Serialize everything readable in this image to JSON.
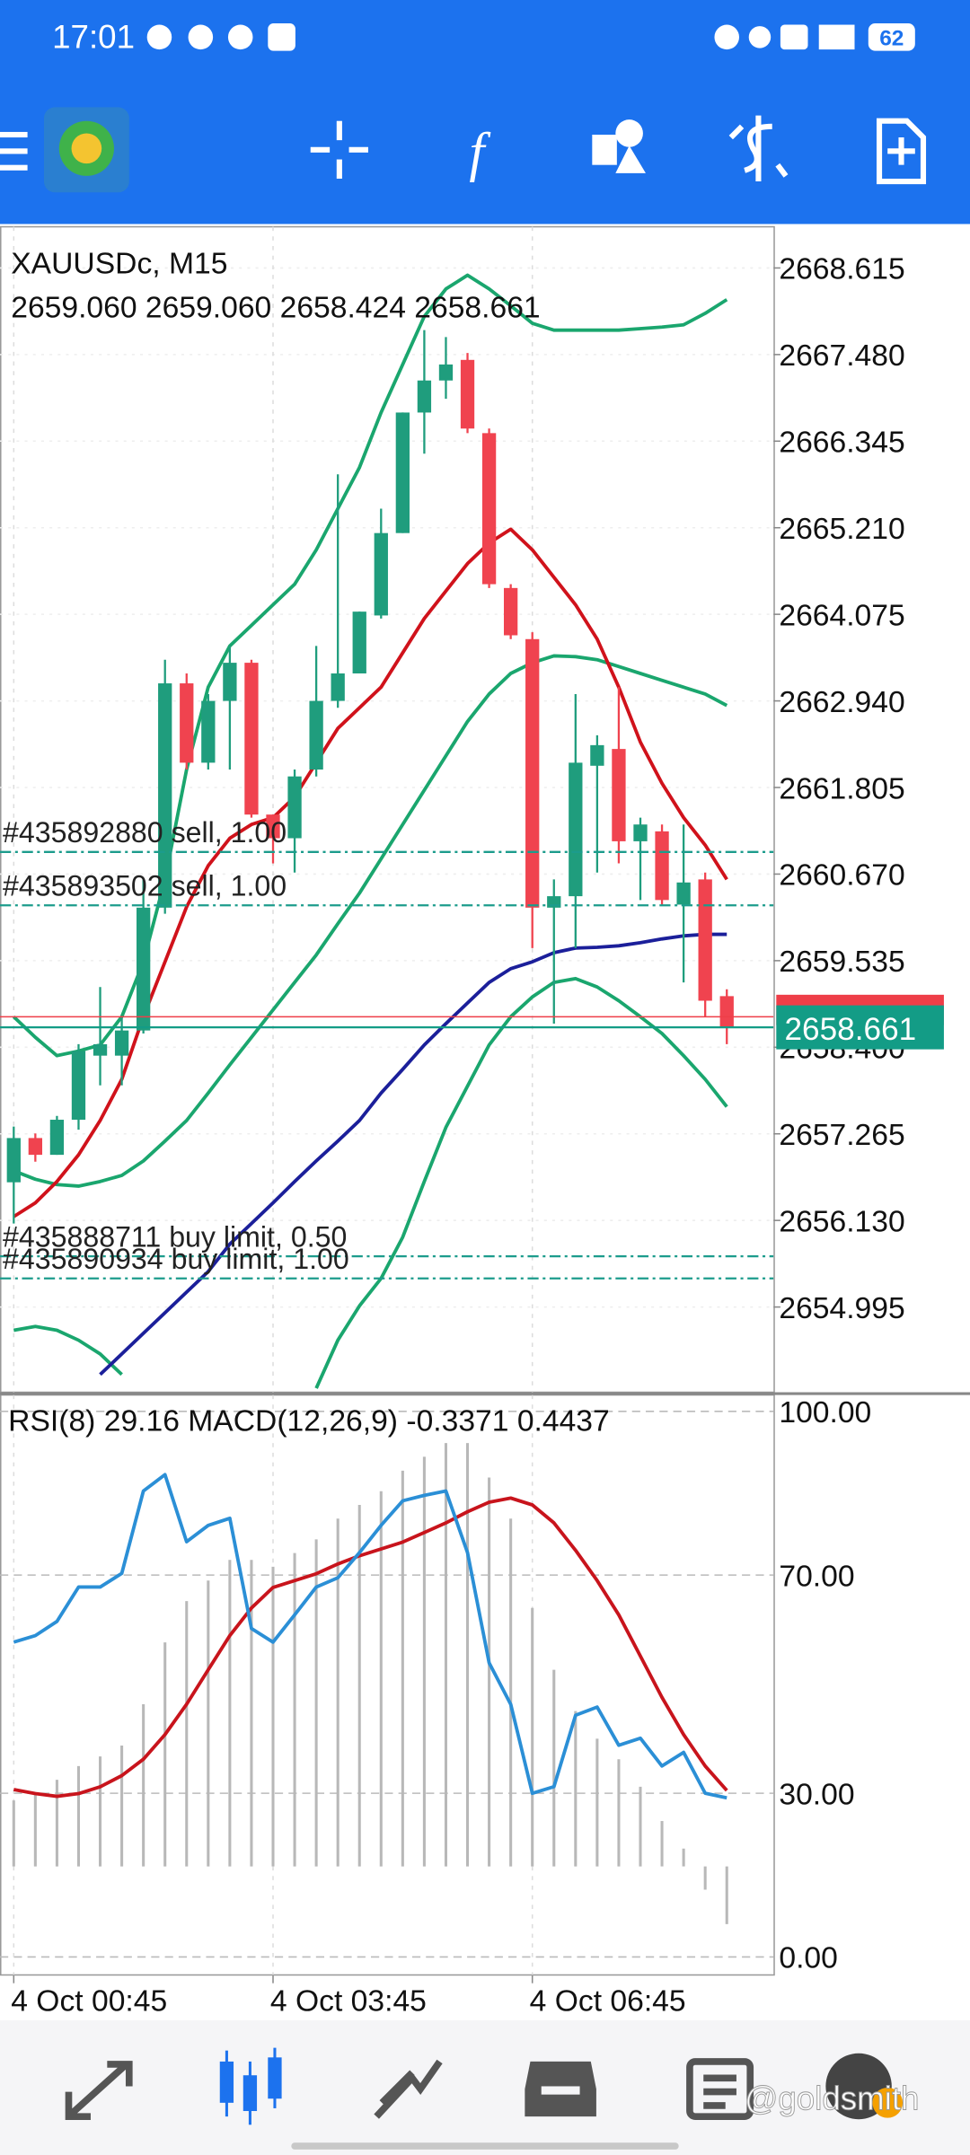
{
  "status_bar": {
    "time": "17:01",
    "battery": "62"
  },
  "chart": {
    "type": "candlestick",
    "symbol": "XAUUSDc, M15",
    "ohlc_text": "2659.060 2659.060 2658.424 2658.661",
    "ylim": [
      2653.878,
      2669.155
    ],
    "yticks": [
      {
        "value": 2668.615,
        "label": "2668.615"
      },
      {
        "value": 2667.48,
        "label": "2667.480"
      },
      {
        "value": 2666.345,
        "label": "2666.345"
      },
      {
        "value": 2665.21,
        "label": "2665.210"
      },
      {
        "value": 2664.075,
        "label": "2664.075"
      },
      {
        "value": 2662.94,
        "label": "2662.940"
      },
      {
        "value": 2661.805,
        "label": "2661.805"
      },
      {
        "value": 2660.67,
        "label": "2660.670"
      },
      {
        "value": 2659.535,
        "label": "2659.535"
      },
      {
        "value": 2658.4,
        "label": "2658.400"
      },
      {
        "value": 2657.265,
        "label": "2657.265"
      },
      {
        "value": 2656.13,
        "label": "2656.130"
      },
      {
        "value": 2654.995,
        "label": "2654.995"
      }
    ],
    "up_color": "#1f9d7d",
    "down_color": "#f0434f",
    "candles": {
      "open": [
        2656.63,
        2657.21,
        2656.99,
        2657.45,
        2658.29,
        2658.29,
        2658.62,
        2660.23,
        2663.17,
        2662.13,
        2662.94,
        2663.44,
        2661.45,
        2661.14,
        2662.04,
        2662.94,
        2663.3,
        2664.06,
        2665.14,
        2666.72,
        2667.14,
        2667.41,
        2666.45,
        2664.42,
        2663.75,
        2660.23,
        2660.38,
        2662.09,
        2662.31,
        2661.1,
        2661.23,
        2660.27,
        2660.6,
        2659.07
      ],
      "high": [
        2657.36,
        2657.27,
        2657.5,
        2658.44,
        2659.19,
        2658.8,
        2660.6,
        2663.48,
        2663.3,
        2663.03,
        2663.66,
        2663.48,
        2661.45,
        2662.04,
        2663.66,
        2665.91,
        2664.11,
        2665.46,
        2666.72,
        2667.8,
        2667.71,
        2667.5,
        2666.51,
        2664.47,
        2663.84,
        2660.6,
        2663.03,
        2662.49,
        2663.12,
        2661.41,
        2661.32,
        2661.32,
        2660.69,
        2659.16
      ],
      "low": [
        2656.09,
        2656.9,
        2656.99,
        2657.32,
        2657.9,
        2657.9,
        2658.58,
        2660.15,
        2662.04,
        2662.04,
        2662.04,
        2661.41,
        2660.81,
        2660.69,
        2661.95,
        2662.85,
        2663.3,
        2664.02,
        2665.14,
        2666.18,
        2666.9,
        2666.45,
        2664.42,
        2663.75,
        2659.7,
        2658.71,
        2659.7,
        2660.69,
        2660.81,
        2660.33,
        2660.27,
        2659.25,
        2658.8,
        2658.44
      ],
      "close": [
        2657.21,
        2656.99,
        2657.45,
        2658.35,
        2658.44,
        2658.62,
        2660.23,
        2663.17,
        2662.13,
        2662.94,
        2663.44,
        2661.45,
        2661.14,
        2661.95,
        2662.94,
        2663.3,
        2664.11,
        2665.14,
        2666.72,
        2667.14,
        2667.35,
        2666.51,
        2664.47,
        2663.8,
        2660.23,
        2660.38,
        2662.13,
        2662.36,
        2661.1,
        2661.32,
        2660.33,
        2660.56,
        2659.01,
        2658.66
      ]
    },
    "lines": [
      {
        "color": "#1aa66e",
        "values": [
          2658.8,
          2658.53,
          2658.29,
          2658.35,
          2658.43,
          2658.8,
          2659.52,
          2660.6,
          2662.04,
          2663.12,
          2663.66,
          2663.93,
          2664.2,
          2664.47,
          2664.92,
          2665.46,
          2666.0,
          2666.72,
          2667.35,
          2667.98,
          2668.34,
          2668.52,
          2668.34,
          2668.12,
          2667.89,
          2667.8,
          2667.8,
          2667.8,
          2667.8,
          2667.82,
          2667.84,
          2667.87,
          2668.02,
          2668.2
        ]
      },
      {
        "color": "#1aa66e",
        "values": [
          2656.78,
          2656.67,
          2656.6,
          2656.58,
          2656.64,
          2656.72,
          2656.91,
          2657.17,
          2657.44,
          2657.8,
          2658.17,
          2658.53,
          2658.89,
          2659.25,
          2659.61,
          2660.02,
          2660.42,
          2660.87,
          2661.32,
          2661.77,
          2662.22,
          2662.67,
          2663.03,
          2663.3,
          2663.44,
          2663.53,
          2663.52,
          2663.48,
          2663.39,
          2663.3,
          2663.21,
          2663.12,
          2663.03,
          2662.88
        ]
      },
      {
        "color": "#1aa66e",
        "values": [
          2654.69,
          2654.74,
          2654.69,
          2654.56,
          2654.38,
          2654.11,
          null,
          null,
          null,
          null,
          null,
          null,
          null,
          null,
          2653.93,
          2654.56,
          2655.01,
          2655.37,
          2655.91,
          2656.64,
          2657.35,
          2657.89,
          2658.43,
          2658.8,
          2659.06,
          2659.25,
          2659.3,
          2659.19,
          2659.01,
          2658.8,
          2658.58,
          2658.29,
          2657.98,
          2657.62
        ]
      },
      {
        "color": "#d0121b",
        "values": [
          2656.18,
          2656.36,
          2656.64,
          2656.99,
          2657.44,
          2657.98,
          2658.8,
          2659.52,
          2660.24,
          2660.78,
          2661.14,
          2661.32,
          2661.41,
          2661.68,
          2662.13,
          2662.58,
          2662.85,
          2663.12,
          2663.57,
          2664.02,
          2664.38,
          2664.74,
          2665.01,
          2665.19,
          2664.92,
          2664.56,
          2664.2,
          2663.75,
          2663.12,
          2662.4,
          2661.86,
          2661.41,
          2661.05,
          2660.6
        ]
      },
      {
        "color": "#1b1f9a",
        "values": [
          null,
          null,
          null,
          null,
          2654.11,
          2654.38,
          2654.65,
          2654.92,
          2655.19,
          2655.46,
          2655.82,
          2656.09,
          2656.36,
          2656.64,
          2656.91,
          2657.17,
          2657.44,
          2657.8,
          2658.11,
          2658.43,
          2658.71,
          2658.98,
          2659.25,
          2659.43,
          2659.52,
          2659.64,
          2659.7,
          2659.71,
          2659.73,
          2659.77,
          2659.82,
          2659.86,
          2659.88,
          2659.88
        ]
      }
    ],
    "orders": [
      {
        "label": "#435892880 sell, 1.00",
        "price": 2660.96
      },
      {
        "label": "#435893502 sell, 1.00",
        "price": 2660.26
      },
      {
        "label": "#435888711 buy limit, 0.50",
        "price": 2655.66
      },
      {
        "label": "#435890934 buy limit, 1.00",
        "price": 2655.37
      }
    ],
    "order_color": "#1c9c8c",
    "bid": 2658.661,
    "bid_color": "#139c86",
    "ask": 2658.8,
    "ask_color": "#ee3e48"
  },
  "indicator": {
    "header": "RSI(8) 29.16 MACD(12,26,9) -0.3371 0.4437",
    "ylim": [
      -3.3,
      103
    ],
    "yticks": [
      {
        "value": 100,
        "label": "100.00"
      },
      {
        "value": 70,
        "label": "70.00"
      },
      {
        "value": 30,
        "label": "30.00"
      },
      {
        "value": 0,
        "label": "0.00"
      }
    ],
    "rsi": {
      "color": "#2b8fd6",
      "values": [
        57.7,
        58.9,
        61.5,
        67.8,
        67.8,
        70.3,
        85.4,
        88.4,
        76.1,
        79.1,
        80.4,
        60.2,
        57.7,
        62.7,
        67.8,
        69.5,
        74.1,
        79.1,
        83.6,
        84.6,
        85.4,
        74.1,
        53.9,
        46.3,
        30.0,
        31.2,
        44.3,
        45.8,
        38.8,
        40.1,
        35.0,
        37.5,
        30.0,
        29.16
      ]
    },
    "macd": {
      "ylim": [
        -0.634,
        2.753
      ],
      "histogram_color": "#b8b8b8",
      "histogram": [
        0.385,
        0.425,
        0.506,
        0.586,
        0.642,
        0.706,
        0.947,
        1.308,
        1.549,
        1.669,
        1.79,
        1.79,
        1.75,
        1.83,
        1.91,
        2.031,
        2.111,
        2.191,
        2.311,
        2.392,
        2.472,
        2.472,
        2.271,
        2.031,
        1.509,
        1.148,
        0.907,
        0.746,
        0.626,
        0.465,
        0.265,
        0.104,
        -0.136,
        -0.3371
      ],
      "signal_color": "#c8141c",
      "signal": [
        0.449,
        0.425,
        0.409,
        0.425,
        0.465,
        0.53,
        0.626,
        0.77,
        0.947,
        1.148,
        1.348,
        1.509,
        1.629,
        1.669,
        1.709,
        1.766,
        1.814,
        1.854,
        1.894,
        1.95,
        2.006,
        2.071,
        2.127,
        2.151,
        2.111,
        2.006,
        1.846,
        1.669,
        1.469,
        1.228,
        0.987,
        0.77,
        0.586,
        0.4437
      ]
    }
  },
  "time_axis": [
    {
      "index": 0,
      "label": "4 Oct 00:45"
    },
    {
      "index": 12,
      "label": "4 Oct 03:45"
    },
    {
      "index": 24,
      "label": "4 Oct 06:45"
    }
  ],
  "watermark": "@goldsmith"
}
